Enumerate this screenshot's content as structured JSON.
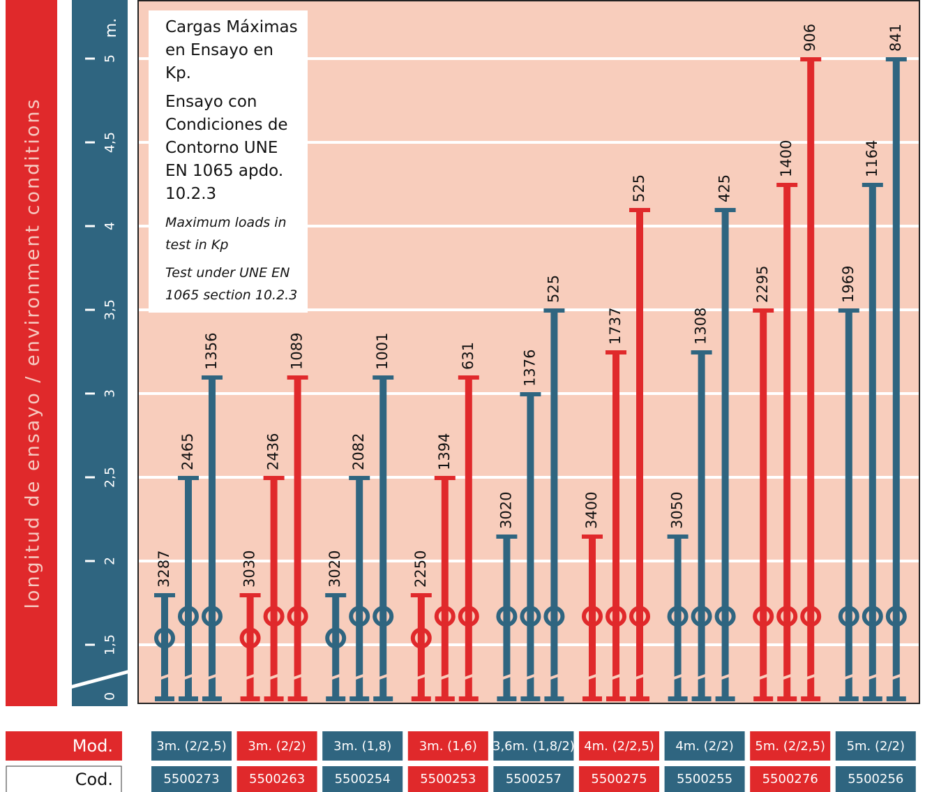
{
  "chart_data": {
    "type": "bar",
    "y_label": "longitud de ensayo / environment conditions",
    "y_unit": "m.",
    "y_base": 0,
    "ylim": [
      1.15,
      5.35
    ],
    "yticks": [
      {
        "value": 1.5,
        "label": "1,5"
      },
      2,
      {
        "value": 2.5,
        "label": "2,5"
      },
      3,
      {
        "value": 3.5,
        "label": "3,5"
      },
      4,
      {
        "value": 4.5,
        "label": "4,5"
      },
      5
    ],
    "grid": true,
    "note_title": "Cargas Máximas en Ensayo en Kp.",
    "note_text": "Ensayo con Condiciones de Contorno UNE EN 1065 apdo. 10.2.3",
    "note_en_title": "Maximum loads in test in Kp",
    "note_en_text": "Test under UNE EN 1065 section 10.2.3",
    "row_labels": [
      "Mod.",
      "Cod."
    ],
    "categories": [
      "3m. (2/2,5)",
      "3m. (2/2)",
      "3m. (1,8)",
      "3m. (1,6)",
      "3,6m. (1,8/2)",
      "4m. (2/2,5)",
      "4m. (2/2)",
      "5m. (2/2,5)",
      "5m. (2/2)"
    ],
    "codes": [
      "5500273",
      "5500263",
      "5500254",
      "5500253",
      "5500257",
      "5500275",
      "5500255",
      "5500276",
      "5500256"
    ],
    "colors": [
      "#2f6580",
      "#e0292b",
      "#2f6580",
      "#e0292b",
      "#2f6580",
      "#e0292b",
      "#2f6580",
      "#e0292b",
      "#2f6580"
    ],
    "series": [
      {
        "values": [
          1.8,
          1.8,
          1.8,
          1.8,
          2.15,
          2.15,
          2.15,
          3.5,
          3.5
        ],
        "loads": [
          3287,
          3030,
          3020,
          2250,
          3020,
          3400,
          3050,
          2295,
          1969
        ]
      },
      {
        "values": [
          2.5,
          2.5,
          2.5,
          2.5,
          3.0,
          3.25,
          3.25,
          4.25,
          4.25
        ],
        "loads": [
          2465,
          2436,
          2082,
          1394,
          1376,
          1737,
          1308,
          1400,
          1164
        ]
      },
      {
        "values": [
          3.1,
          3.1,
          3.1,
          3.1,
          3.5,
          4.1,
          4.1,
          5.0,
          5.0
        ],
        "loads": [
          1356,
          1089,
          1001,
          631,
          525,
          525,
          425,
          906,
          841
        ]
      }
    ]
  }
}
